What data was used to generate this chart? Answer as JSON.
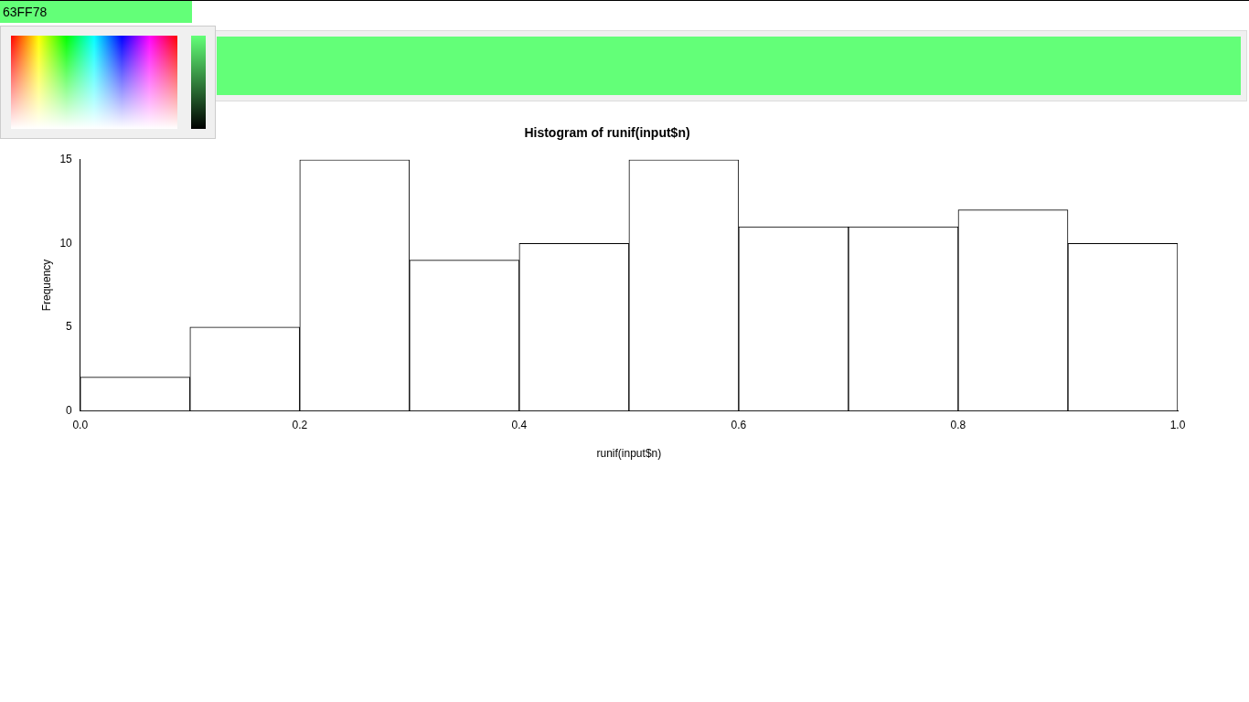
{
  "chart_data": {
    "type": "histogram",
    "title": "Histogram of runif(input$n)",
    "xlabel": "runif(input$n)",
    "ylabel": "Frequency",
    "bins": [
      0,
      0.1,
      0.2,
      0.3,
      0.4,
      0.5,
      0.6,
      0.7,
      0.8,
      0.9,
      1.0
    ],
    "values": [
      2,
      5,
      15,
      9,
      10,
      15,
      11,
      11,
      12,
      10
    ],
    "color": "#ffffff",
    "xlim": [
      0,
      1
    ],
    "xticks": [
      {
        "value": 0,
        "label": "0.0"
      },
      {
        "value": 0.2,
        "label": "0.2"
      },
      {
        "value": 0.4,
        "label": "0.4"
      },
      {
        "value": 0.6,
        "label": "0.6"
      },
      {
        "value": 0.8,
        "label": "0.8"
      },
      {
        "value": 1,
        "label": "1.0"
      }
    ],
    "ylim": [
      0,
      15
    ],
    "yticks": [
      0,
      5,
      10,
      15
    ],
    "grid": false,
    "annotations": [
      "63FF78"
    ]
  }
}
